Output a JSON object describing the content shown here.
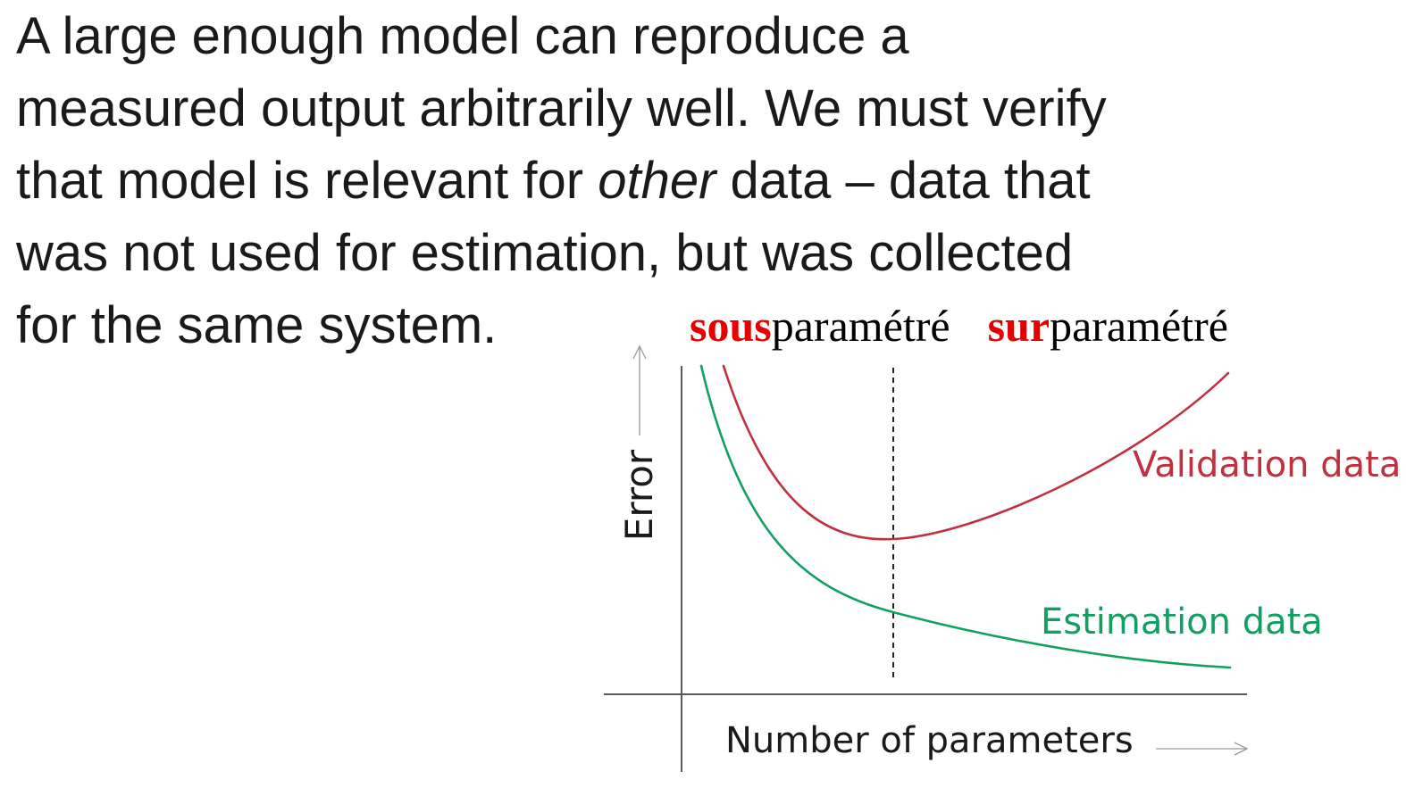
{
  "text": {
    "line1": "A large enough model can reproduce a",
    "line2": "measured output arbitrarily well. We must verify",
    "line3_a": "that model is relevant for ",
    "line3_em": "other",
    "line3_b": " data – data that",
    "line4": "was not used for estimation, but was collected",
    "line5": "for the same system."
  },
  "labels": {
    "under_prefix": "sous",
    "under_suffix": "paramétré",
    "over_prefix": "sur",
    "over_suffix": "paramétré"
  },
  "diagram": {
    "y_axis_label": "Error",
    "x_axis_label": "Number of parameters",
    "series": [
      {
        "name": "Validation data",
        "color": "#c0303e",
        "shape": "u-shaped, minimum at the optimal number of parameters"
      },
      {
        "name": "Estimation data",
        "color": "#11a060",
        "shape": "monotonically decreasing"
      }
    ],
    "optimum_marker": "dashed vertical line at validation minimum",
    "colors": {
      "highlight": "#e60000",
      "axis": "#5a5a5a"
    }
  }
}
